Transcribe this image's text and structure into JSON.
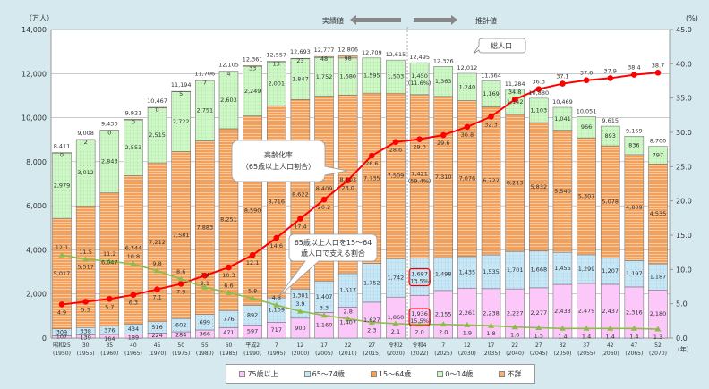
{
  "chart_data": {
    "type": "bar",
    "stacked": true,
    "left_axis_unit": "（万人）",
    "right_axis_unit": "(%)",
    "x_axis_unit": "(年)",
    "ylim_left": [
      0,
      14000
    ],
    "ylim_right": [
      0,
      45
    ],
    "left_ticks": [
      "0",
      "2,000",
      "4,000",
      "6,000",
      "8,000",
      "10,000",
      "12,000",
      "14,000"
    ],
    "right_ticks": [
      "0.0",
      "5.0",
      "10.0",
      "15.0",
      "20.0",
      "25.0",
      "30.0",
      "35.0",
      "40.0",
      "45.0"
    ],
    "grid": true,
    "legend_placement": "bottom",
    "actual_label": "実績値",
    "projected_label": "推計値",
    "era_labels": [
      "昭和25",
      "30",
      "35",
      "40",
      "45",
      "50",
      "55",
      "60",
      "平成2",
      "7",
      "12",
      "17",
      "22",
      "27",
      "令和2",
      "令和4",
      "7",
      "12",
      "17",
      "22",
      "27",
      "32",
      "37",
      "42",
      "47",
      "52"
    ],
    "year_labels": [
      "(1950)",
      "(1955)",
      "(1960)",
      "(1965)",
      "(1970)",
      "(1975)",
      "(1980)",
      "(1985)",
      "(1990)",
      "(1995)",
      "(2000)",
      "(2005)",
      "(2010)",
      "(2015)",
      "(2020)",
      "(2022)",
      "(2025)",
      "(2030)",
      "(2035)",
      "(2040)",
      "(2045)",
      "(2050)",
      "(2055)",
      "(2060)",
      "(2065)",
      "(2070)"
    ],
    "series": [
      {
        "name": "75歳以上",
        "color": "#fcc8fa",
        "values": [
          107,
          139,
          164,
          189,
          224,
          284,
          366,
          471,
          597,
          717,
          900,
          1160,
          1407,
          1627,
          1860,
          1936,
          2155,
          2261,
          2238,
          2227,
          2277,
          2433,
          2479,
          2437,
          2316,
          2180
        ]
      },
      {
        "name": "65～74歳",
        "color": "#c6e6f6",
        "values": [
          309,
          338,
          376,
          434,
          516,
          602,
          699,
          776,
          892,
          1109,
          1301,
          1407,
          1517,
          1752,
          1742,
          1687,
          1498,
          1435,
          1535,
          1701,
          1668,
          1455,
          1299,
          1207,
          1197,
          1187
        ]
      },
      {
        "name": "15～64歳",
        "color": "#f3a05a",
        "values": [
          5017,
          5517,
          6047,
          6744,
          7212,
          7581,
          7883,
          8251,
          8590,
          8716,
          8622,
          8409,
          8103,
          7735,
          7509,
          7421,
          7310,
          7076,
          6722,
          6213,
          5832,
          5540,
          5307,
          5078,
          4809,
          4535
        ]
      },
      {
        "name": "0～14歳",
        "color": "#ccf6c4",
        "values": [
          2979,
          3012,
          2843,
          2553,
          2515,
          2722,
          2751,
          2603,
          2249,
          2001,
          1847,
          1752,
          1680,
          1595,
          1503,
          1450,
          1363,
          1240,
          1169,
          1142,
          1103,
          1041,
          966,
          893,
          836,
          797
        ]
      },
      {
        "name": "不詳",
        "color": "#f5b27a",
        "values": [
          0,
          2,
          0,
          0,
          0,
          5,
          7,
          4,
          33,
          13,
          23,
          48,
          98,
          null,
          null,
          null,
          null,
          null,
          null,
          null,
          null,
          null,
          null,
          null,
          null,
          null
        ]
      }
    ],
    "totals": [
      8411,
      9008,
      9430,
      9921,
      10467,
      11194,
      11706,
      12105,
      12361,
      12557,
      12693,
      12777,
      12806,
      12709,
      12615,
      12495,
      12326,
      12012,
      11664,
      11284,
      10880,
      10469,
      10051,
      9615,
      9159,
      8700
    ],
    "total_label": "総人口",
    "share_2022": {
      "75歳以上": "(15.5%)",
      "65～74歳": "(13.5%)",
      "15～64歳": "(59.4%)",
      "0～14歳": "(11.6%)"
    },
    "aging_rate": {
      "name": "高齢化率",
      "subtitle": "（65歳以上人口割合）",
      "color": "#ff0000",
      "values": [
        4.9,
        5.3,
        5.7,
        6.3,
        7.1,
        7.9,
        9.1,
        10.3,
        12.1,
        14.6,
        17.4,
        20.2,
        23.0,
        26.6,
        28.6,
        29.0,
        29.6,
        30.8,
        32.3,
        34.8,
        36.3,
        37.1,
        37.6,
        37.9,
        38.4,
        38.7
      ]
    },
    "support_ratio": {
      "name_line1": "65歳以上人口を15～64",
      "name_line2": "歳人口で支える割合",
      "color": "#8dbb4a",
      "values": [
        12.1,
        11.5,
        11.2,
        10.8,
        9.8,
        8.6,
        7.4,
        6.6,
        5.8,
        4.8,
        3.9,
        3.3,
        2.8,
        2.3,
        2.1,
        2.0,
        2.0,
        1.9,
        1.8,
        1.6,
        1.5,
        1.4,
        1.4,
        1.4,
        1.4,
        1.3
      ]
    }
  },
  "legend": [
    {
      "label": "75歳以上",
      "color": "#fcc8fa"
    },
    {
      "label": "65～74歳",
      "color": "#c6e6f6"
    },
    {
      "label": "15～64歳",
      "color": "#f3a05a"
    },
    {
      "label": "0～14歳",
      "color": "#ccf6c4"
    },
    {
      "label": "不詳",
      "color": "#f5b27a"
    }
  ]
}
